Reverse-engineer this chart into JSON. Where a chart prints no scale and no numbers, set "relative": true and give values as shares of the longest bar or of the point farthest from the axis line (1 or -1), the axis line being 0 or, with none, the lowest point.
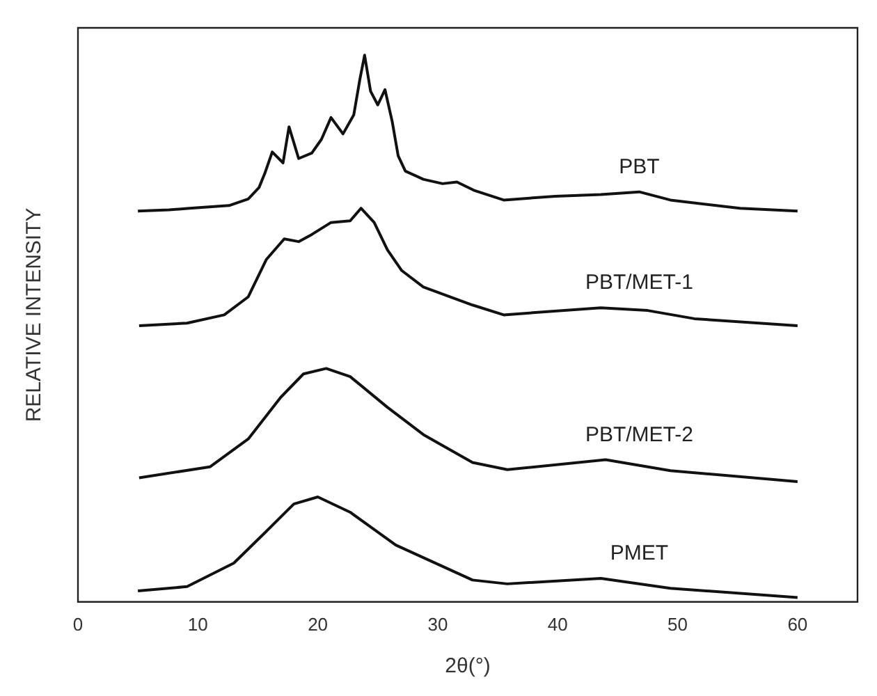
{
  "chart_data": {
    "type": "line",
    "relative": true,
    "xlabel": "2θ(°)",
    "ylabel": "RELATIVE INTENSITY",
    "xlim": [
      0,
      65
    ],
    "xticks": [
      0,
      10,
      20,
      30,
      40,
      50,
      60
    ],
    "grid": false,
    "legend": false,
    "marker": "none",
    "line_style": "solid",
    "series": [
      {
        "name": "PBT",
        "color": "#111111",
        "x": [
          5,
          7.6,
          9.3,
          12.6,
          14.2,
          15.1,
          15.6,
          16.2,
          17.1,
          17.6,
          18.4,
          19.5,
          20.3,
          21.1,
          22.1,
          23,
          23.5,
          23.9,
          24.4,
          25,
          25.6,
          26.2,
          26.7,
          27.3,
          28.8,
          30.4,
          31.6,
          33,
          35.5,
          39.8,
          43.6,
          46.8,
          49.4,
          55.2,
          60
        ],
        "values": [
          0.715,
          0.717,
          0.72,
          0.725,
          0.737,
          0.758,
          0.785,
          0.823,
          0.803,
          0.869,
          0.811,
          0.821,
          0.846,
          0.886,
          0.856,
          0.891,
          0.955,
          1,
          0.934,
          0.909,
          0.937,
          0.879,
          0.816,
          0.788,
          0.773,
          0.765,
          0.768,
          0.753,
          0.735,
          0.742,
          0.745,
          0.75,
          0.735,
          0.72,
          0.715
        ]
      },
      {
        "name": "PBT/MET-1",
        "color": "#111111",
        "x": [
          5.1,
          9.1,
          12.2,
          14.2,
          15.7,
          17.2,
          18.4,
          19.5,
          21.1,
          22.7,
          23.6,
          24.7,
          25.8,
          27,
          28.8,
          32.9,
          35.5,
          43.6,
          47.5,
          51.4,
          60
        ],
        "values": [
          0.505,
          0.51,
          0.525,
          0.558,
          0.626,
          0.664,
          0.659,
          0.672,
          0.694,
          0.697,
          0.72,
          0.694,
          0.644,
          0.606,
          0.576,
          0.543,
          0.525,
          0.538,
          0.533,
          0.518,
          0.505
        ]
      },
      {
        "name": "PBT/MET-2",
        "color": "#111111",
        "x": [
          5.1,
          11,
          14.2,
          16.9,
          18.8,
          20.7,
          22.7,
          25.8,
          28.8,
          32.9,
          35.8,
          44,
          49.4,
          60
        ],
        "values": [
          0.227,
          0.247,
          0.298,
          0.374,
          0.417,
          0.427,
          0.412,
          0.356,
          0.306,
          0.255,
          0.242,
          0.26,
          0.24,
          0.22
        ]
      },
      {
        "name": "PMET",
        "color": "#111111",
        "x": [
          5,
          9.1,
          13,
          15.7,
          18,
          20,
          22.7,
          26.5,
          32.9,
          35.8,
          43.6,
          49.4,
          60
        ],
        "values": [
          0.02,
          0.028,
          0.071,
          0.129,
          0.179,
          0.192,
          0.164,
          0.104,
          0.04,
          0.033,
          0.043,
          0.025,
          0.008
        ]
      }
    ]
  }
}
